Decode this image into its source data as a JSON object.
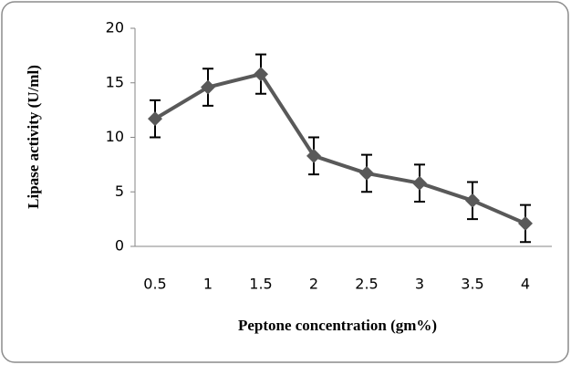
{
  "chart_data": {
    "type": "line",
    "x_label": "Peptone concentration (gm%)",
    "y_label": "Lipase activity (U/ml)",
    "categories": [
      "0.5",
      "1",
      "1.5",
      "2",
      "2.5",
      "3",
      "3.5",
      "4"
    ],
    "values": [
      11.7,
      14.6,
      15.8,
      8.3,
      6.7,
      5.8,
      4.2,
      2.1
    ],
    "errors": [
      1.7,
      1.7,
      1.8,
      1.7,
      1.7,
      1.7,
      1.7,
      1.7
    ],
    "color": "#595959",
    "ylim": [
      0,
      20
    ],
    "yticks": [
      0,
      5,
      10,
      15,
      20
    ],
    "grid": false
  }
}
